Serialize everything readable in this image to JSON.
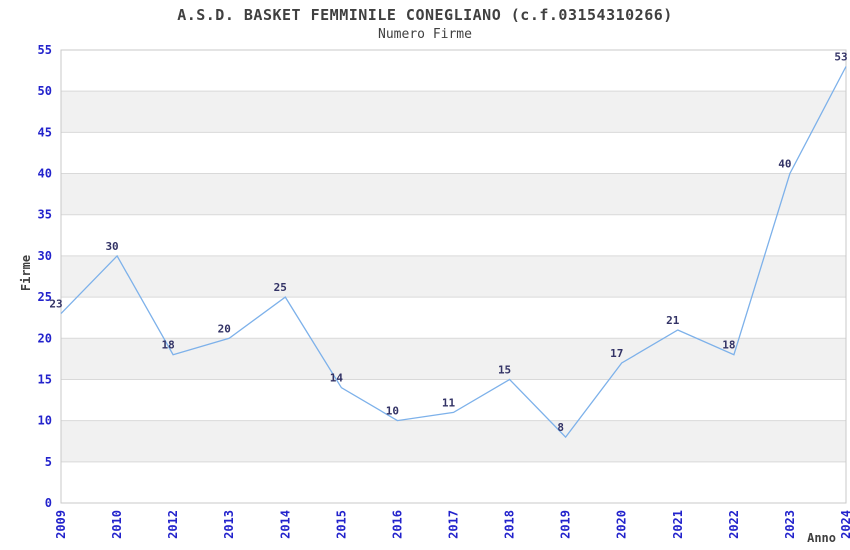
{
  "chart_data": {
    "type": "line",
    "title": "A.S.D. BASKET FEMMINILE CONEGLIANO (c.f.03154310266)",
    "subtitle": "Numero Firme",
    "xlabel": "Anno",
    "ylabel": "Firme",
    "categories": [
      "2009",
      "2010",
      "2012",
      "2013",
      "2014",
      "2015",
      "2016",
      "2017",
      "2018",
      "2019",
      "2020",
      "2021",
      "2022",
      "2023",
      "2024"
    ],
    "values": [
      23,
      30,
      18,
      20,
      25,
      14,
      10,
      11,
      15,
      8,
      17,
      21,
      18,
      40,
      53
    ],
    "ylim": [
      0,
      55
    ],
    "ytick_step": 5,
    "grid": "horizontal-bands",
    "legend": "none",
    "colors": {
      "line": "#7db1ea",
      "tick_label": "#2323cc",
      "data_label": "#333366",
      "band": "#f1f1f1",
      "gridline": "#d9d9d9",
      "plot_border": "#c9c9c9",
      "heading_text": "#404040",
      "background": "#ffffff"
    }
  }
}
